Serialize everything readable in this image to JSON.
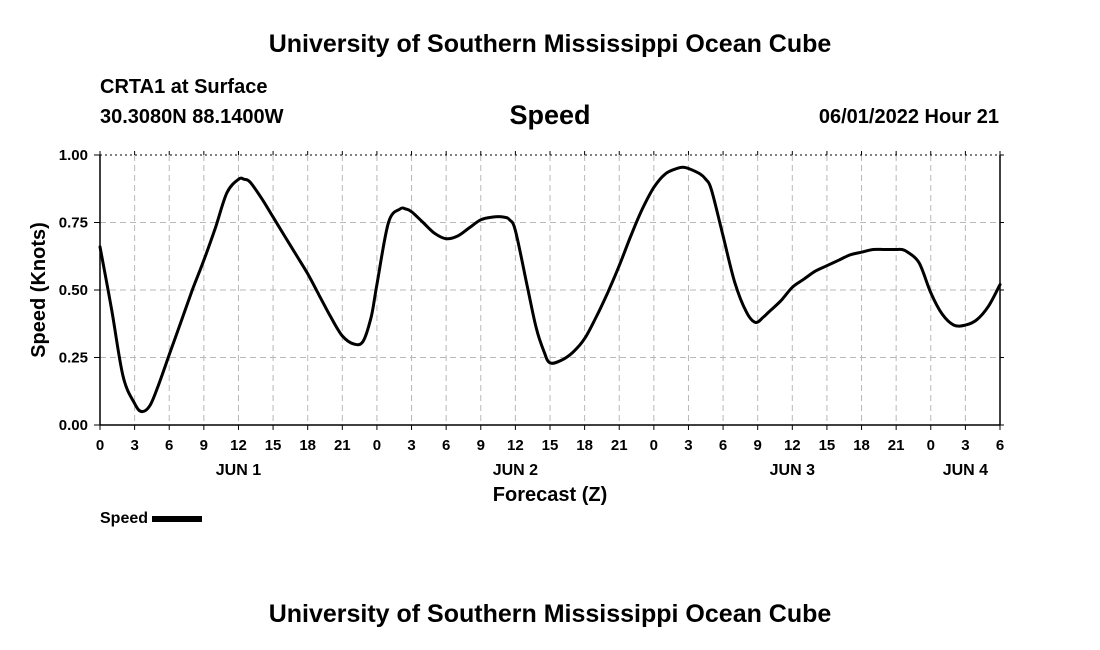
{
  "header": {
    "title": "University of Southern Mississippi Ocean Cube",
    "station": "CRTA1 at Surface",
    "location": "30.3080N  88.1400W",
    "variable": "Speed",
    "datetime": "06/01/2022 Hour 21"
  },
  "footer": {
    "title": "University of Southern Mississippi Ocean Cube"
  },
  "legend": {
    "label": "Speed"
  },
  "chart_data": {
    "type": "line",
    "title": "Speed",
    "xlabel": "Forecast (Z)",
    "ylabel": "Speed (Knots)",
    "xlim": [
      0,
      78
    ],
    "ylim": [
      0,
      1
    ],
    "x_ticks": [
      {
        "x": 0,
        "label": "0"
      },
      {
        "x": 3,
        "label": "3"
      },
      {
        "x": 6,
        "label": "6"
      },
      {
        "x": 9,
        "label": "9"
      },
      {
        "x": 12,
        "label": "12"
      },
      {
        "x": 15,
        "label": "15"
      },
      {
        "x": 18,
        "label": "18"
      },
      {
        "x": 21,
        "label": "21"
      },
      {
        "x": 24,
        "label": "0"
      },
      {
        "x": 27,
        "label": "3"
      },
      {
        "x": 30,
        "label": "6"
      },
      {
        "x": 33,
        "label": "9"
      },
      {
        "x": 36,
        "label": "12"
      },
      {
        "x": 39,
        "label": "15"
      },
      {
        "x": 42,
        "label": "18"
      },
      {
        "x": 45,
        "label": "21"
      },
      {
        "x": 48,
        "label": "0"
      },
      {
        "x": 51,
        "label": "3"
      },
      {
        "x": 54,
        "label": "6"
      },
      {
        "x": 57,
        "label": "9"
      },
      {
        "x": 60,
        "label": "12"
      },
      {
        "x": 63,
        "label": "15"
      },
      {
        "x": 66,
        "label": "18"
      },
      {
        "x": 69,
        "label": "21"
      },
      {
        "x": 72,
        "label": "0"
      },
      {
        "x": 75,
        "label": "3"
      },
      {
        "x": 78,
        "label": "6"
      }
    ],
    "day_labels": [
      {
        "x": 12,
        "label": "JUN 1"
      },
      {
        "x": 36,
        "label": "JUN 2"
      },
      {
        "x": 60,
        "label": "JUN 3"
      },
      {
        "x": 75,
        "label": "JUN 4"
      }
    ],
    "y_ticks": [
      {
        "y": 0.0,
        "label": "0.00"
      },
      {
        "y": 0.25,
        "label": "0.25"
      },
      {
        "y": 0.5,
        "label": "0.50"
      },
      {
        "y": 0.75,
        "label": "0.75"
      },
      {
        "y": 1.0,
        "label": "1.00"
      }
    ],
    "grid": true,
    "series": [
      {
        "name": "Speed",
        "color": "#000000",
        "x": [
          0,
          1,
          2,
          3,
          3.6,
          4.3,
          5,
          6,
          7,
          8,
          9,
          10,
          11,
          12,
          12.5,
          13,
          14,
          15,
          16,
          17,
          18,
          19,
          20,
          21,
          22,
          22.8,
          23.5,
          24,
          25,
          26,
          26.5,
          27,
          28,
          29,
          30,
          31,
          32,
          33,
          34,
          35,
          35.5,
          36,
          37,
          37.8,
          38.5,
          39,
          40,
          41,
          42,
          43,
          44,
          45,
          46,
          47,
          48,
          49,
          50,
          50.5,
          51,
          52,
          52.5,
          53,
          54,
          55,
          56,
          56.8,
          57.5,
          58,
          59,
          60,
          61,
          62,
          63,
          64,
          65,
          66,
          67,
          68,
          69,
          69.5,
          70,
          71,
          72,
          73,
          74,
          75,
          76,
          77,
          78
        ],
        "values": [
          0.66,
          0.43,
          0.18,
          0.08,
          0.05,
          0.07,
          0.14,
          0.26,
          0.38,
          0.5,
          0.61,
          0.73,
          0.86,
          0.91,
          0.91,
          0.9,
          0.84,
          0.77,
          0.7,
          0.63,
          0.56,
          0.48,
          0.4,
          0.33,
          0.3,
          0.31,
          0.4,
          0.52,
          0.75,
          0.8,
          0.8,
          0.79,
          0.75,
          0.71,
          0.69,
          0.7,
          0.73,
          0.76,
          0.77,
          0.77,
          0.76,
          0.72,
          0.52,
          0.36,
          0.27,
          0.23,
          0.24,
          0.27,
          0.32,
          0.4,
          0.49,
          0.59,
          0.7,
          0.8,
          0.88,
          0.93,
          0.95,
          0.955,
          0.95,
          0.93,
          0.91,
          0.87,
          0.7,
          0.53,
          0.42,
          0.38,
          0.4,
          0.42,
          0.46,
          0.51,
          0.54,
          0.57,
          0.59,
          0.61,
          0.63,
          0.64,
          0.65,
          0.65,
          0.65,
          0.65,
          0.64,
          0.6,
          0.49,
          0.41,
          0.37,
          0.37,
          0.39,
          0.44,
          0.52
        ]
      }
    ]
  }
}
